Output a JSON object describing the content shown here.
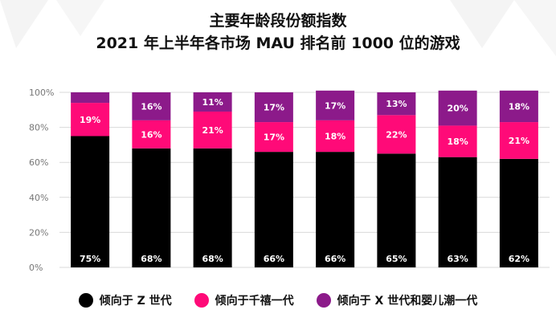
{
  "chart_data": {
    "type": "bar",
    "stacked": true,
    "title": "主要年龄段份额指数",
    "subtitle": "2021 年上半年各市场 MAU 排名前 1000 位的游戏",
    "ylim": [
      0,
      100
    ],
    "yticks": [
      "0%",
      "20%",
      "40%",
      "60%",
      "80%",
      "100%"
    ],
    "categories": [
      "",
      "",
      "",
      "",
      "",
      "",
      "",
      ""
    ],
    "series": [
      {
        "name": "倾向于 Z 世代",
        "color": "#000000",
        "values": [
          75,
          68,
          68,
          66,
          66,
          65,
          63,
          62
        ]
      },
      {
        "name": "倾向于千禧一代",
        "color": "#ff0a78",
        "values": [
          19,
          16,
          21,
          17,
          18,
          22,
          18,
          21
        ]
      },
      {
        "name": "倾向于 X 世代和婴儿潮一代",
        "color": "#8c1a8a",
        "values": [
          6,
          16,
          11,
          17,
          17,
          13,
          20,
          18
        ]
      }
    ],
    "data_labels": [
      [
        "75%",
        "68%",
        "68%",
        "66%",
        "66%",
        "65%",
        "63%",
        "62%"
      ],
      [
        "19%",
        "16%",
        "21%",
        "17%",
        "18%",
        "22%",
        "18%",
        "21%"
      ],
      [
        "",
        "16%",
        "11%",
        "17%",
        "17%",
        "13%",
        "20%",
        "18%"
      ]
    ],
    "grid": true,
    "legend_position": "bottom"
  }
}
